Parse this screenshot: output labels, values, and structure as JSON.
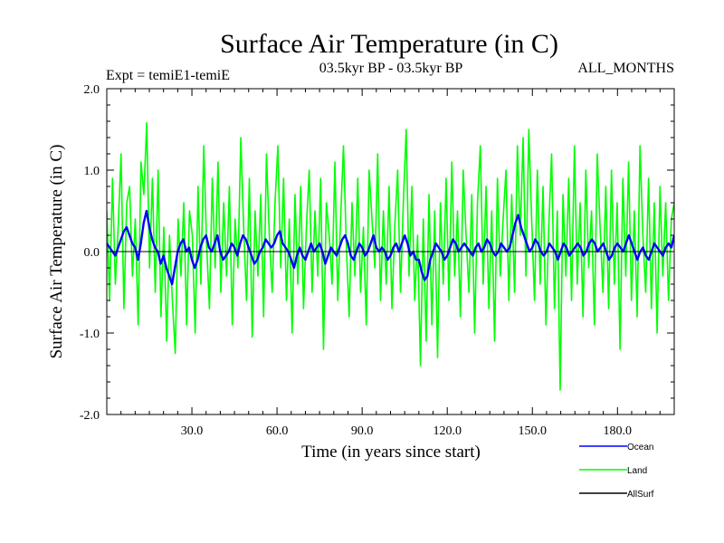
{
  "chart_data": {
    "type": "line",
    "title": "Surface Air Temperature (in C)",
    "subtitle_left": "Expt = temiE1-temiE",
    "subtitle_center": "03.5kyr BP - 03.5kyr BP",
    "subtitle_right": "ALL_MONTHS",
    "xlabel": "Time (in years since start)",
    "ylabel": "Surface Air Temperature (in C)",
    "xlim": [
      0,
      200
    ],
    "ylim": [
      -2.0,
      2.0
    ],
    "x_ticks": [
      30,
      60,
      90,
      120,
      150,
      180
    ],
    "x_tick_labels": [
      "30.0",
      "60.0",
      "90.0",
      "120.0",
      "150.0",
      "180.0"
    ],
    "y_ticks": [
      -2.0,
      -1.0,
      0.0,
      1.0,
      2.0
    ],
    "y_tick_labels": [
      "-2.0",
      "-1.0",
      "0.0",
      "1.0",
      "2.0"
    ],
    "zero_line": 0.0,
    "series": [
      {
        "name": "Ocean",
        "color": "#0000ff",
        "x_start": 0,
        "x_end": 200,
        "anchors": [
          0.1,
          0.05,
          0.0,
          -0.05,
          0.05,
          0.15,
          0.25,
          0.3,
          0.2,
          0.1,
          0.05,
          -0.1,
          0.1,
          0.35,
          0.5,
          0.3,
          0.15,
          0.05,
          0.0,
          -0.15,
          -0.05,
          -0.2,
          -0.3,
          -0.4,
          -0.2,
          0.0,
          0.1,
          0.15,
          0.0,
          0.05,
          -0.1,
          -0.2,
          -0.1,
          0.05,
          0.15,
          0.2,
          0.05,
          0.0,
          0.1,
          0.2,
          0.0,
          -0.1,
          -0.05,
          0.0,
          0.1,
          0.05,
          -0.05,
          0.1,
          0.2,
          0.15,
          0.05,
          -0.05,
          -0.15,
          -0.1,
          0.0,
          0.05,
          0.15,
          0.1,
          0.05,
          0.1,
          0.2,
          0.25,
          0.1,
          0.05,
          0.0,
          -0.1,
          -0.2,
          -0.05,
          0.05,
          -0.05,
          -0.1,
          0.0,
          0.1,
          0.0,
          0.05,
          0.1,
          0.0,
          -0.15,
          -0.05,
          0.05,
          0.0,
          -0.05,
          0.05,
          0.15,
          0.2,
          0.1,
          -0.05,
          -0.1,
          0.0,
          0.1,
          0.05,
          -0.05,
          0.0,
          0.1,
          0.2,
          0.05,
          0.0,
          0.05,
          0.0,
          -0.1,
          -0.05,
          0.05,
          0.1,
          0.0,
          0.1,
          0.2,
          0.1,
          -0.05,
          0.0,
          -0.1,
          -0.1,
          -0.25,
          -0.35,
          -0.3,
          -0.1,
          0.0,
          0.1,
          0.05,
          0.0,
          -0.1,
          -0.05,
          0.05,
          0.15,
          0.1,
          0.0,
          0.05,
          0.1,
          0.05,
          0.0,
          -0.05,
          0.05,
          0.1,
          0.0,
          0.05,
          0.15,
          0.1,
          0.0,
          -0.05,
          0.0,
          0.1,
          0.05,
          0.0,
          0.05,
          0.2,
          0.35,
          0.45,
          0.3,
          0.2,
          0.1,
          0.0,
          0.05,
          0.15,
          0.1,
          0.0,
          -0.05,
          0.0,
          0.1,
          0.05,
          0.0,
          -0.1,
          0.0,
          0.1,
          0.05,
          -0.05,
          0.0,
          0.05,
          0.1,
          0.05,
          -0.05,
          0.0,
          0.1,
          0.15,
          0.1,
          0.0,
          0.05,
          0.1,
          0.0,
          -0.1,
          -0.05,
          0.05,
          0.1,
          0.05,
          0.0,
          0.1,
          0.2,
          0.1,
          0.0,
          -0.1,
          0.0,
          0.05,
          -0.05,
          -0.1,
          0.0,
          0.1,
          0.05,
          0.0,
          -0.05,
          0.05,
          0.1,
          0.05,
          0.2
        ]
      },
      {
        "name": "Land",
        "color": "#00ff00",
        "x_start": 0,
        "x_end": 200,
        "anchors": [
          0.5,
          -0.6,
          0.9,
          -0.4,
          0.3,
          1.2,
          -0.7,
          0.6,
          0.8,
          -0.3,
          0.4,
          -0.9,
          1.1,
          0.7,
          1.58,
          -0.2,
          0.9,
          -0.5,
          1.0,
          -0.8,
          0.3,
          -1.1,
          0.2,
          -0.6,
          -1.25,
          0.4,
          -0.3,
          0.6,
          -0.9,
          0.5,
          0.2,
          -1.0,
          0.8,
          -0.4,
          1.3,
          0.1,
          -0.7,
          0.9,
          -0.2,
          1.1,
          -0.5,
          0.6,
          -0.3,
          0.8,
          -0.9,
          0.4,
          -0.2,
          1.4,
          0.3,
          -0.6,
          0.9,
          -1.05,
          0.5,
          -0.3,
          0.7,
          -0.8,
          1.2,
          0.2,
          -0.5,
          0.6,
          1.3,
          -0.2,
          0.9,
          -0.6,
          0.4,
          -1.0,
          0.7,
          -0.4,
          0.8,
          -0.7,
          0.3,
          1.0,
          -0.5,
          0.5,
          -0.3,
          0.9,
          -1.2,
          0.6,
          0.2,
          -0.4,
          1.1,
          -0.6,
          0.4,
          1.3,
          0.1,
          -0.8,
          0.6,
          -0.3,
          0.9,
          -0.5,
          0.3,
          -0.9,
          1.0,
          0.4,
          -0.2,
          1.2,
          -0.6,
          0.5,
          -0.4,
          0.8,
          -0.7,
          0.3,
          1.0,
          -0.5,
          0.6,
          1.5,
          -0.3,
          0.8,
          -0.6,
          0.2,
          -1.4,
          0.4,
          -1.1,
          0.7,
          -0.9,
          0.5,
          -1.3,
          0.6,
          -0.4,
          0.9,
          -0.6,
          1.1,
          -0.3,
          0.5,
          -0.8,
          1.0,
          0.2,
          -0.5,
          0.7,
          -1.0,
          0.6,
          1.3,
          -0.4,
          0.8,
          -0.7,
          0.5,
          -1.1,
          0.9,
          -0.3,
          0.4,
          1.0,
          -0.6,
          0.7,
          -0.5,
          1.3,
          0.2,
          1.4,
          -0.3,
          1.5,
          0.4,
          -0.6,
          1.0,
          -0.4,
          0.8,
          -0.9,
          0.3,
          1.2,
          -0.7,
          0.5,
          -1.7,
          0.7,
          -0.3,
          0.9,
          -0.6,
          1.3,
          -0.4,
          0.6,
          -0.8,
          1.0,
          -0.2,
          0.5,
          -0.9,
          1.2,
          0.3,
          -0.5,
          0.8,
          -0.7,
          1.0,
          -0.4,
          0.6,
          -1.2,
          0.9,
          -0.3,
          1.1,
          -0.6,
          0.5,
          -0.8,
          1.3,
          0.2,
          -0.5,
          0.9,
          -0.7,
          0.6,
          -1.0,
          0.8,
          -0.3,
          0.6,
          -0.6,
          0.4,
          0.6
        ]
      },
      {
        "name": "AllSurf",
        "color": "#000000",
        "values": []
      }
    ],
    "legend": {
      "placement": "bottom-right",
      "entries": [
        "Ocean",
        "Land",
        "AllSurf"
      ]
    }
  }
}
